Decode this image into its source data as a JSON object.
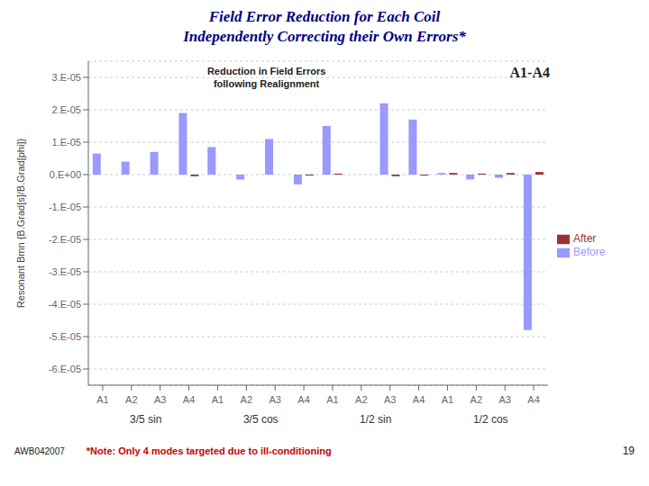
{
  "chart_data": {
    "type": "bar",
    "title": "Field Error Reduction for Each Coil",
    "subtitle": "Independently Correcting their Own Errors*",
    "chart_title": [
      "Reduction in Field Errors",
      "following Realignment"
    ],
    "annotations": [
      "A1-A4"
    ],
    "footer": [
      "AWB042007",
      "*Note: Only 4 modes targeted due to ill-conditioning",
      "19"
    ],
    "ylabel": "Resonant Bmn {B.Grad[s]/B.Grad[phi]}",
    "groups": [
      "3/5 sin",
      "3/5 cos",
      "1/2 sin",
      "1/2 cos"
    ],
    "categories": [
      "A1",
      "A2",
      "A3",
      "A4",
      "A1",
      "A2",
      "A3",
      "A4",
      "A1",
      "A2",
      "A3",
      "A4",
      "A1",
      "A2",
      "A3",
      "A4"
    ],
    "series": [
      {
        "name": "Before",
        "color": "#9999FF",
        "values": [
          6.5e-06,
          4e-06,
          7e-06,
          1.9e-05,
          8.5e-06,
          -1.5e-06,
          1.1e-05,
          -3e-06,
          1.5e-05,
          0.0,
          2.2e-05,
          1.7e-05,
          5e-07,
          -1.5e-06,
          -1e-06,
          -4.8e-05
        ]
      },
      {
        "name": "After",
        "color": "#993333",
        "values": [
          0.0,
          0.0,
          0.0,
          -5e-07,
          0.0,
          0.0,
          0.0,
          -3e-07,
          3e-07,
          0.0,
          -5e-07,
          -3e-07,
          5e-07,
          3e-07,
          5e-07,
          8e-07
        ]
      }
    ],
    "ylim": [
      -6.5e-05,
      3.5e-05
    ],
    "yticks": [
      {
        "value": -6e-05,
        "label": "-6.E-05"
      },
      {
        "value": -5e-05,
        "label": "-5.E-05"
      },
      {
        "value": -4e-05,
        "label": "-4.E-05"
      },
      {
        "value": -3e-05,
        "label": "-3.E-05"
      },
      {
        "value": -2e-05,
        "label": "-2.E-05"
      },
      {
        "value": -1e-05,
        "label": "-1.E-05"
      },
      {
        "value": 0,
        "label": "0.E+00"
      },
      {
        "value": 1e-05,
        "label": "1.E-05"
      },
      {
        "value": 2e-05,
        "label": "2.E-05"
      },
      {
        "value": 3e-05,
        "label": "3.E-05"
      }
    ],
    "grid": true,
    "legend": "right"
  }
}
